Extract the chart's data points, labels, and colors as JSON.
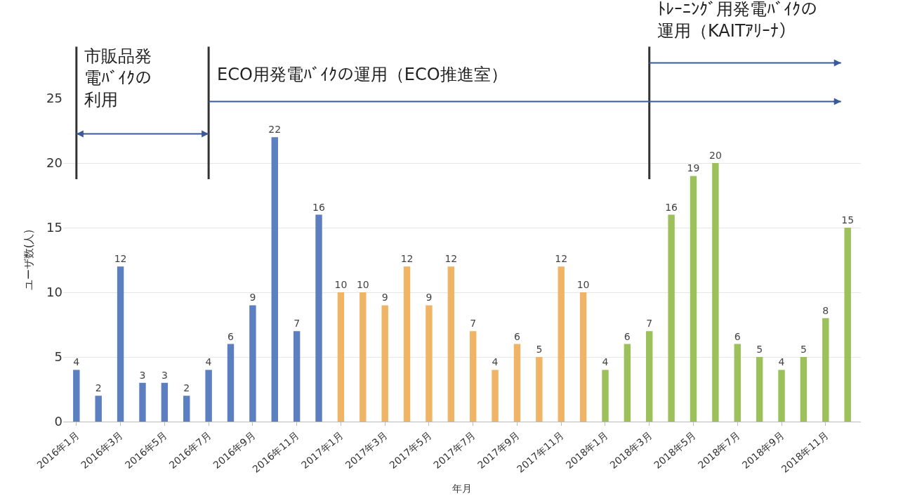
{
  "chart_data": {
    "type": "bar",
    "xlabel": "年月",
    "ylabel": "ユーザ数(人)",
    "categories": [
      "2016年1月",
      null,
      "2016年3月",
      null,
      "2016年5月",
      null,
      "2016年7月",
      null,
      "2016年9月",
      null,
      "2016年11月",
      null,
      "2017年1月",
      null,
      "2017年3月",
      null,
      "2017年5月",
      null,
      "2017年7月",
      null,
      "2017年9月",
      null,
      "2017年11月",
      null,
      "2018年1月",
      null,
      "2018年3月",
      null,
      "2018年5月",
      null,
      "2018年7月",
      null,
      "2018年9月",
      null,
      "2018年11月",
      null
    ],
    "values": [
      4,
      2,
      12,
      3,
      3,
      2,
      4,
      6,
      9,
      22,
      7,
      16,
      10,
      10,
      9,
      12,
      9,
      12,
      7,
      4,
      6,
      5,
      12,
      10,
      4,
      6,
      7,
      16,
      19,
      20,
      6,
      5,
      4,
      5,
      8,
      15
    ],
    "colors": [
      "#5b7fc0",
      "#5b7fc0",
      "#5b7fc0",
      "#5b7fc0",
      "#5b7fc0",
      "#5b7fc0",
      "#5b7fc0",
      "#5b7fc0",
      "#5b7fc0",
      "#5b7fc0",
      "#5b7fc0",
      "#5b7fc0",
      "#f0b466",
      "#f0b466",
      "#f0b466",
      "#f0b466",
      "#f0b466",
      "#f0b466",
      "#f0b466",
      "#f0b466",
      "#f0b466",
      "#f0b466",
      "#f0b466",
      "#f0b466",
      "#9cc05a",
      "#9cc05a",
      "#9cc05a",
      "#9cc05a",
      "#9cc05a",
      "#9cc05a",
      "#9cc05a",
      "#9cc05a",
      "#9cc05a",
      "#9cc05a",
      "#9cc05a",
      "#9cc05a"
    ],
    "data_labels": true,
    "ylim": [
      0,
      25
    ],
    "yticks": [
      0,
      5,
      10,
      15,
      20,
      25
    ],
    "grid": "y",
    "ref_lines": [
      {
        "axis": "x",
        "value": "2016年1月",
        "color": "#333333"
      },
      {
        "axis": "x",
        "value": "2016年7月",
        "color": "#333333"
      },
      {
        "axis": "x",
        "value": "2018年3月",
        "color": "#333333"
      }
    ],
    "annotations": [
      "市販品発電ﾊﾞｲｸの利用",
      "ECO用発電ﾊﾞｲｸの運用（ECO推進室）",
      "ﾄﾚｰﾆﾝｸﾞ用発電ﾊﾞｲｸの運用（KAITｱﾘｰﾅ）"
    ]
  }
}
